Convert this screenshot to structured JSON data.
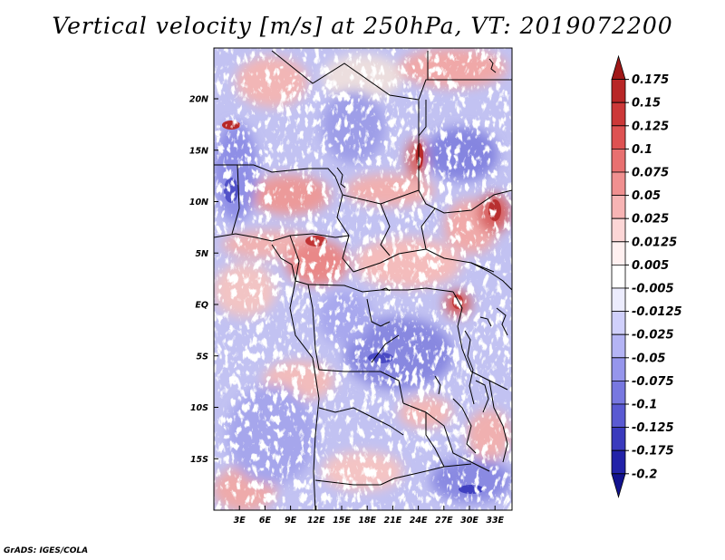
{
  "title": "Vertical velocity [m/s] at 250hPa, VT: 2019072200",
  "credit": "GrADS: IGES/COLA",
  "map": {
    "lat_ticks": [
      {
        "label": "20N",
        "value": 20
      },
      {
        "label": "15N",
        "value": 15
      },
      {
        "label": "10N",
        "value": 10
      },
      {
        "label": "5N",
        "value": 5
      },
      {
        "label": "EQ",
        "value": 0
      },
      {
        "label": "5S",
        "value": -5
      },
      {
        "label": "10S",
        "value": -10
      },
      {
        "label": "15S",
        "value": -15
      }
    ],
    "lon_ticks": [
      {
        "label": "3E",
        "value": 3
      },
      {
        "label": "6E",
        "value": 6
      },
      {
        "label": "9E",
        "value": 9
      },
      {
        "label": "12E",
        "value": 12
      },
      {
        "label": "15E",
        "value": 15
      },
      {
        "label": "18E",
        "value": 18
      },
      {
        "label": "21E",
        "value": 21
      },
      {
        "label": "24E",
        "value": 24
      },
      {
        "label": "27E",
        "value": 27
      },
      {
        "label": "30E",
        "value": 30
      },
      {
        "label": "33E",
        "value": 33
      }
    ],
    "lon_range": [
      0,
      35
    ],
    "lat_range": [
      -20,
      25
    ]
  },
  "colorbar": {
    "levels": [
      "0.175",
      "0.15",
      "0.125",
      "0.1",
      "0.075",
      "0.05",
      "0.025",
      "0.0125",
      "0.005",
      "-0.005",
      "-0.0125",
      "-0.025",
      "-0.05",
      "-0.075",
      "-0.1",
      "-0.125",
      "-0.175",
      "-0.2"
    ],
    "colors": [
      "#a01818",
      "#b82626",
      "#cc3838",
      "#de5252",
      "#e87070",
      "#f09090",
      "#f7b4b4",
      "#fcd6d6",
      "#fff0f0",
      "#ffffff",
      "#ececfd",
      "#d0d0fb",
      "#b4b4f4",
      "#9696ec",
      "#7878e0",
      "#5a5ad2",
      "#3a3abd",
      "#2222a8",
      "#12128e"
    ]
  }
}
